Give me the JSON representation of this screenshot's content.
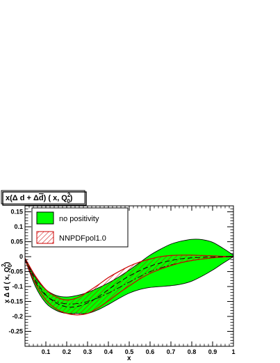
{
  "chart_data": {
    "type": "area",
    "title": "x(Δ d + Δd) ( x, Q0²)",
    "title_parts": {
      "prefix": "x(Δ d + Δ",
      "overbar": "d",
      "mid": ") ( x, Q",
      "sup": "2",
      "sub": "0",
      "suffix": ")"
    },
    "xlabel": "x",
    "ylabel_parts": {
      "prefix": "x Δ d  ( x, Q",
      "sup": "2",
      "sub": "0",
      "suffix": ")"
    },
    "xlim": [
      0.0,
      1.0
    ],
    "ylim": [
      -0.3,
      0.17
    ],
    "x_ticks": [
      0.1,
      0.2,
      0.3,
      0.4,
      0.5,
      0.6,
      0.7,
      0.8,
      0.9,
      1
    ],
    "x_tick_labels": [
      "0.1",
      "0.2",
      "0.3",
      "0.4",
      "0.5",
      "0.6",
      "0.7",
      "0.8",
      "0.9",
      "1"
    ],
    "y_ticks": [
      -0.25,
      -0.2,
      -0.15,
      -0.1,
      -0.05,
      0,
      0.05,
      0.1,
      0.15
    ],
    "y_tick_labels": [
      "-0.25",
      "-0.2",
      "-0.15",
      "-0.1",
      "-0.05",
      "0",
      "0.05",
      "0.1",
      "0.15"
    ],
    "legend_position": "top-left",
    "series": [
      {
        "name": "no positivity",
        "style": "solid-band",
        "color": "#00ff00",
        "edge_color": "#000000",
        "x": [
          0.0,
          0.05,
          0.1,
          0.15,
          0.2,
          0.25,
          0.3,
          0.35,
          0.4,
          0.45,
          0.5,
          0.55,
          0.6,
          0.65,
          0.7,
          0.75,
          0.8,
          0.85,
          0.9,
          0.95,
          1.0
        ],
        "upper": [
          -0.005,
          -0.07,
          -0.11,
          -0.13,
          -0.135,
          -0.13,
          -0.12,
          -0.105,
          -0.088,
          -0.068,
          -0.045,
          -0.02,
          0.005,
          0.025,
          0.042,
          0.052,
          0.058,
          0.057,
          0.048,
          0.028,
          0.005
        ],
        "lower": [
          -0.01,
          -0.1,
          -0.155,
          -0.18,
          -0.19,
          -0.19,
          -0.19,
          -0.178,
          -0.16,
          -0.14,
          -0.122,
          -0.11,
          -0.103,
          -0.1,
          -0.097,
          -0.092,
          -0.082,
          -0.065,
          -0.045,
          -0.022,
          0.0
        ],
        "central": [
          -0.008,
          -0.085,
          -0.13,
          -0.15,
          -0.158,
          -0.157,
          -0.15,
          -0.138,
          -0.122,
          -0.104,
          -0.085,
          -0.067,
          -0.05,
          -0.038,
          -0.028,
          -0.02,
          -0.013,
          -0.008,
          -0.004,
          -0.001,
          0.002
        ]
      },
      {
        "name": "NNPDFpol1.0",
        "style": "hatched-band",
        "color": "#cc0000",
        "x": [
          0.0,
          0.05,
          0.1,
          0.15,
          0.2,
          0.25,
          0.3,
          0.35,
          0.4,
          0.45,
          0.5,
          0.55,
          0.6,
          0.65,
          0.7,
          0.75,
          0.8,
          0.85,
          0.9,
          0.95,
          1.0
        ],
        "upper": [
          -0.005,
          -0.065,
          -0.11,
          -0.135,
          -0.145,
          -0.138,
          -0.118,
          -0.095,
          -0.07,
          -0.05,
          -0.032,
          -0.018,
          -0.008,
          0.0,
          0.004,
          0.005,
          0.005,
          0.004,
          0.003,
          0.001,
          0.0
        ],
        "lower": [
          -0.01,
          -0.09,
          -0.145,
          -0.175,
          -0.19,
          -0.195,
          -0.19,
          -0.172,
          -0.148,
          -0.122,
          -0.098,
          -0.075,
          -0.056,
          -0.042,
          -0.03,
          -0.02,
          -0.013,
          -0.008,
          -0.004,
          -0.001,
          0.0
        ],
        "central": [
          -0.008,
          -0.078,
          -0.128,
          -0.155,
          -0.168,
          -0.167,
          -0.155,
          -0.135,
          -0.11,
          -0.086,
          -0.065,
          -0.047,
          -0.032,
          -0.021,
          -0.013,
          -0.007,
          -0.004,
          -0.002,
          -0.001,
          0.0,
          0.0
        ]
      }
    ]
  }
}
